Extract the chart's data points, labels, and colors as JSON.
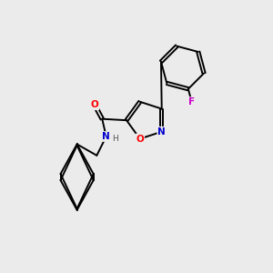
{
  "background_color": "#ebebeb",
  "bond_color": "#000000",
  "atom_colors": {
    "O": "#ff0000",
    "N": "#0000cd",
    "F": "#cc00cc",
    "C": "#000000"
  },
  "figsize": [
    3.0,
    3.0
  ],
  "dpi": 100
}
